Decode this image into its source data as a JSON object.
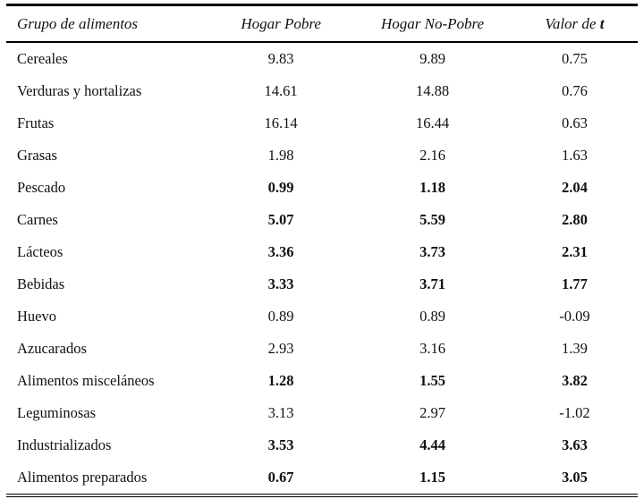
{
  "table": {
    "headers": {
      "food_group": "Grupo de alimentos",
      "poor": "Hogar Pobre",
      "non_poor": "Hogar No-Pobre",
      "t_value_prefix": "Valor de ",
      "t_symbol": "t"
    },
    "rows": [
      {
        "label": "Cereales",
        "poor": "9.83",
        "non_poor": "9.89",
        "t": "0.75",
        "bold": false
      },
      {
        "label": "Verduras y hortalizas",
        "poor": "14.61",
        "non_poor": "14.88",
        "t": "0.76",
        "bold": false
      },
      {
        "label": "Frutas",
        "poor": "16.14",
        "non_poor": "16.44",
        "t": "0.63",
        "bold": false
      },
      {
        "label": "Grasas",
        "poor": "1.98",
        "non_poor": "2.16",
        "t": "1.63",
        "bold": false
      },
      {
        "label": "Pescado",
        "poor": "0.99",
        "non_poor": "1.18",
        "t": "2.04",
        "bold": true
      },
      {
        "label": "Carnes",
        "poor": "5.07",
        "non_poor": "5.59",
        "t": "2.80",
        "bold": true
      },
      {
        "label": "Lácteos",
        "poor": "3.36",
        "non_poor": "3.73",
        "t": "2.31",
        "bold": true
      },
      {
        "label": "Bebidas",
        "poor": "3.33",
        "non_poor": "3.71",
        "t": "1.77",
        "bold": true
      },
      {
        "label": "Huevo",
        "poor": "0.89",
        "non_poor": "0.89",
        "t": "-0.09",
        "bold": false
      },
      {
        "label": "Azucarados",
        "poor": "2.93",
        "non_poor": "3.16",
        "t": "1.39",
        "bold": false
      },
      {
        "label": "Alimentos misceláneos",
        "poor": "1.28",
        "non_poor": "1.55",
        "t": "3.82",
        "bold": true
      },
      {
        "label": "Leguminosas",
        "poor": "3.13",
        "non_poor": "2.97",
        "t": "-1.02",
        "bold": false
      },
      {
        "label": "Industrializados",
        "poor": "3.53",
        "non_poor": "4.44",
        "t": "3.63",
        "bold": true
      },
      {
        "label": "Alimentos preparados",
        "poor": "0.67",
        "non_poor": "1.15",
        "t": "3.05",
        "bold": true
      }
    ]
  }
}
